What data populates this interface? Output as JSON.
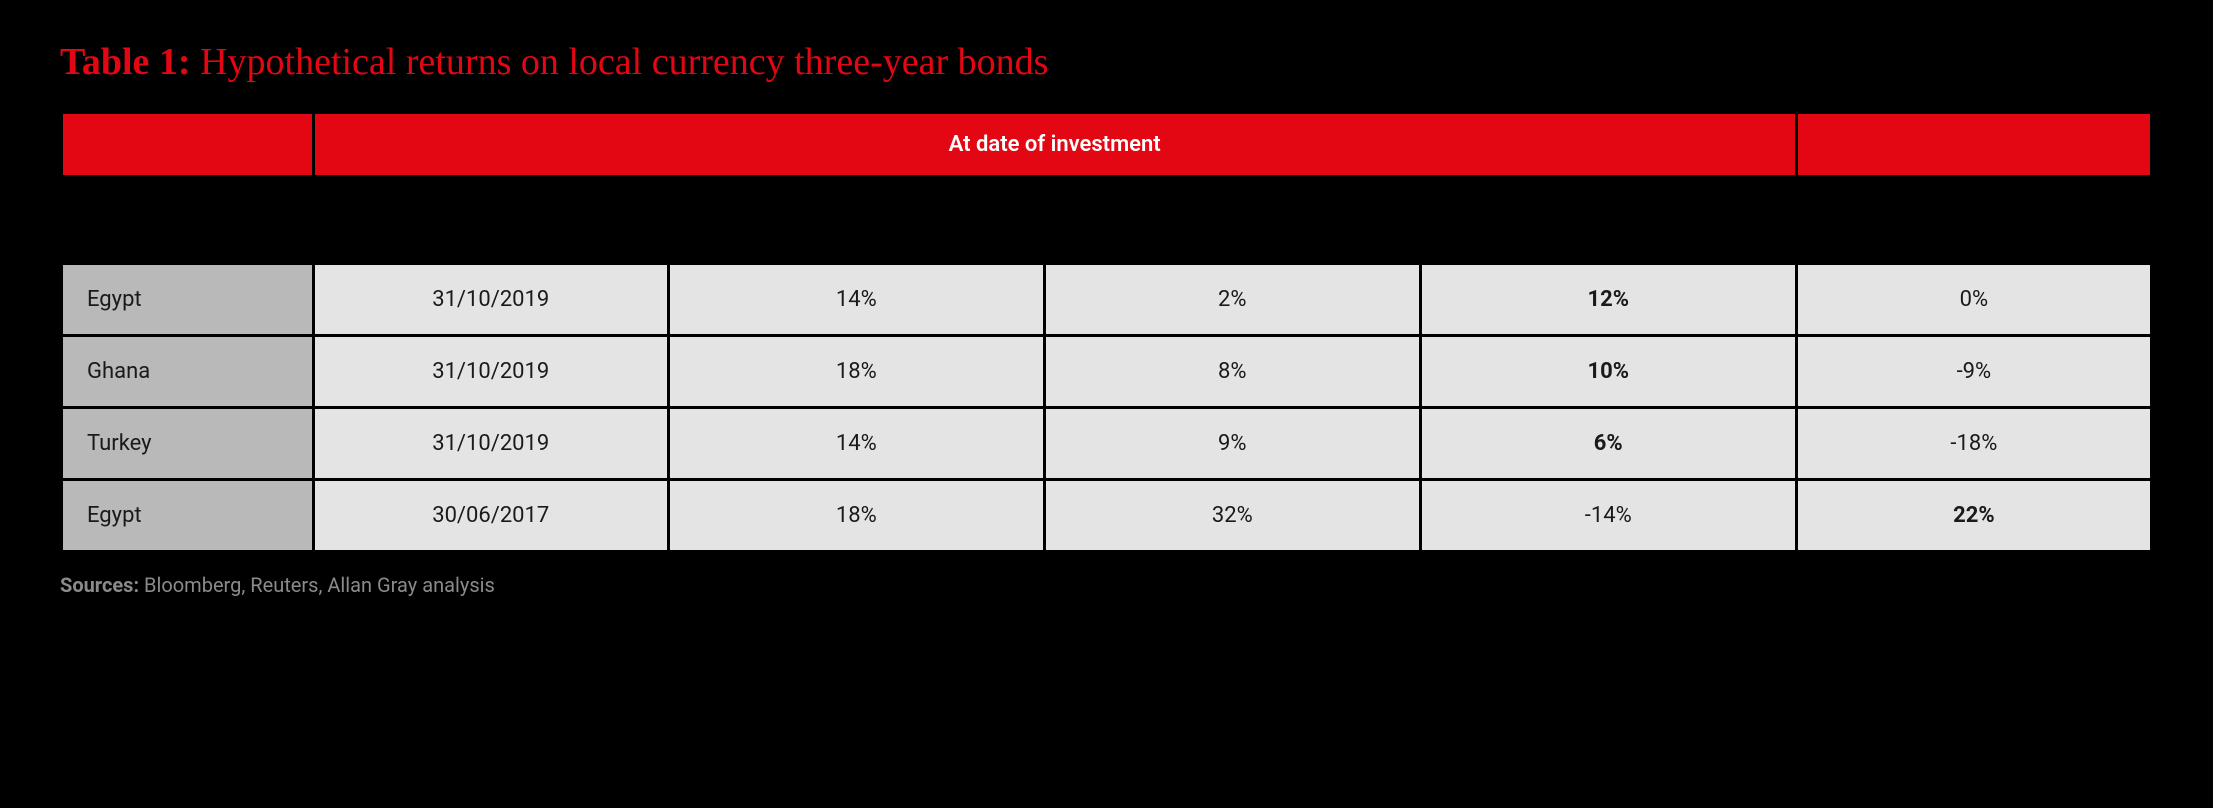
{
  "title": {
    "prefix": "Table 1:",
    "text": "Hypothetical returns on local currency three-year bonds"
  },
  "header": {
    "group_label": "At date of investment"
  },
  "columns": {
    "widths_pct": [
      12,
      17,
      18,
      18,
      18,
      17
    ]
  },
  "rows": [
    {
      "country": "Egypt",
      "date": "31/10/2019",
      "col3": {
        "text": "14%",
        "bold": false,
        "negative": false
      },
      "col4": {
        "text": "2%",
        "bold": false,
        "negative": false
      },
      "col5": {
        "text": "12%",
        "bold": true,
        "negative": false
      },
      "col6": {
        "text": "0%",
        "bold": false,
        "negative": true
      }
    },
    {
      "country": "Ghana",
      "date": "31/10/2019",
      "col3": {
        "text": "18%",
        "bold": false,
        "negative": false
      },
      "col4": {
        "text": "8%",
        "bold": false,
        "negative": false
      },
      "col5": {
        "text": "10%",
        "bold": true,
        "negative": false
      },
      "col6": {
        "text": "-9%",
        "bold": false,
        "negative": true
      }
    },
    {
      "country": "Turkey",
      "date": "31/10/2019",
      "col3": {
        "text": "14%",
        "bold": false,
        "negative": false
      },
      "col4": {
        "text": "9%",
        "bold": false,
        "negative": false
      },
      "col5": {
        "text": "6%",
        "bold": true,
        "negative": false
      },
      "col6": {
        "text": "-18%",
        "bold": false,
        "negative": true
      }
    },
    {
      "country": "Egypt",
      "date": "30/06/2017",
      "col3": {
        "text": "18%",
        "bold": false,
        "negative": false
      },
      "col4": {
        "text": "32%",
        "bold": false,
        "negative": false
      },
      "col5": {
        "text": "-14%",
        "bold": false,
        "negative": true
      },
      "col6": {
        "text": "22%",
        "bold": true,
        "negative": false
      }
    }
  ],
  "sources": {
    "label": "Sources:",
    "text": "Bloomberg, Reuters, Allan Gray analysis"
  },
  "colors": {
    "accent": "#e30613",
    "background": "#000000",
    "cell_bg": "#e4e4e4",
    "country_bg": "#b9b9b9",
    "text_dark": "#1a1a1a",
    "sources_text": "#8a8a8a"
  }
}
